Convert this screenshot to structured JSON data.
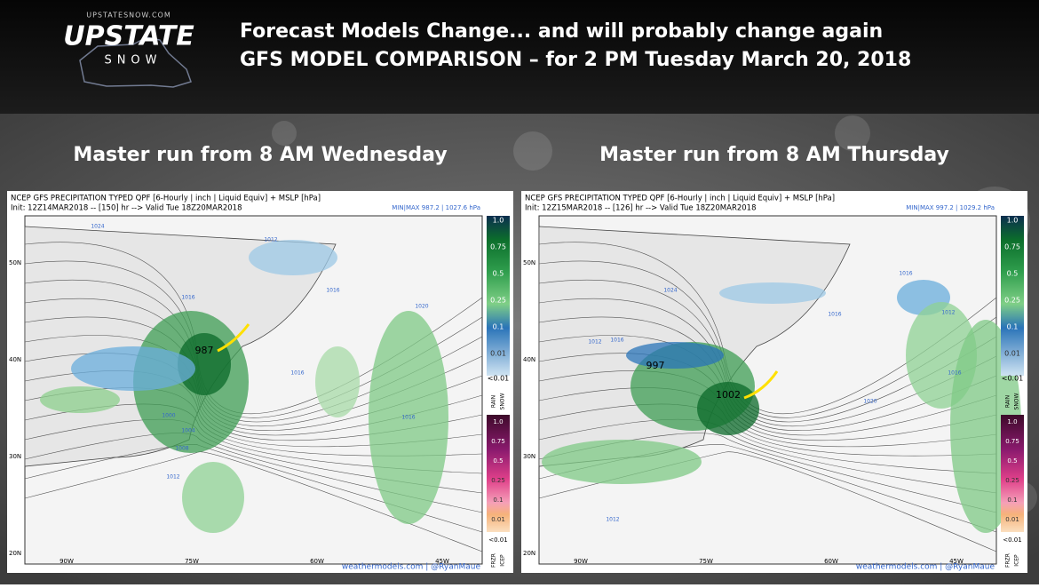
{
  "logo": {
    "site": "UPSTATESNOW.COM",
    "name": "UPSTATE",
    "sub": "SNOW"
  },
  "header": {
    "title": "Forecast Models Change... and will probably change again",
    "subtitle": "GFS MODEL COMPARISON – for 2 PM Tuesday March 20, 2018"
  },
  "legend": {
    "rain_snow": [
      "1.0",
      "0.75",
      "0.5",
      "0.25",
      "0.1",
      "0.01"
    ],
    "rain_snow_min": "<0.01",
    "rain": "RAIN",
    "snow": "SNOW",
    "frzr_icep": [
      "1.0",
      "0.75",
      "0.5",
      "0.25",
      "0.1",
      "0.01"
    ],
    "frzr_icep_min": "<0.01",
    "frzr": "FRZR",
    "icep": "ICEP"
  },
  "panels": [
    {
      "title": "Master run from 8 AM Wednesday",
      "line1": "NCEP GFS PRECIPITATION TYPED QPF [6-Hourly | inch | Liquid Equiv] + MSLP [hPa]",
      "line2": "Init: 12Z14MAR2018 -- [150] hr --> Valid Tue 18Z20MAR2018",
      "minmax": "MIN|MAX 987.2 | 1027.6 hPa",
      "lat_labels": [
        "50N",
        "40N",
        "30N",
        "20N"
      ],
      "lon_labels": [
        "90W",
        "75W",
        "60W",
        "45W"
      ],
      "lows": [
        "987"
      ],
      "isobars": [
        "1024",
        "1012",
        "1016",
        "1016",
        "1020",
        "1016",
        "1016",
        "1000",
        "1004",
        "1008",
        "1012"
      ],
      "credit": "weathermodels.com | @RyanMaue"
    },
    {
      "title": "Master run from 8 AM Thursday",
      "line1": "NCEP GFS PRECIPITATION TYPED QPF [6-Hourly | inch | Liquid Equiv] + MSLP [hPa]",
      "line2": "Init: 12Z15MAR2018 -- [126] hr --> Valid Tue 18Z20MAR2018",
      "minmax": "MIN|MAX 997.2 | 1029.2 hPa",
      "lat_labels": [
        "50N",
        "40N",
        "30N",
        "20N"
      ],
      "lon_labels": [
        "90W",
        "75W",
        "60W",
        "45W"
      ],
      "lows": [
        "997",
        "1002"
      ],
      "isobars": [
        "1024",
        "1016",
        "1012",
        "1016",
        "1012",
        "1016",
        "1020",
        "1016",
        "1012"
      ],
      "credit": "weathermodels.com | @RyanMaue"
    }
  ]
}
